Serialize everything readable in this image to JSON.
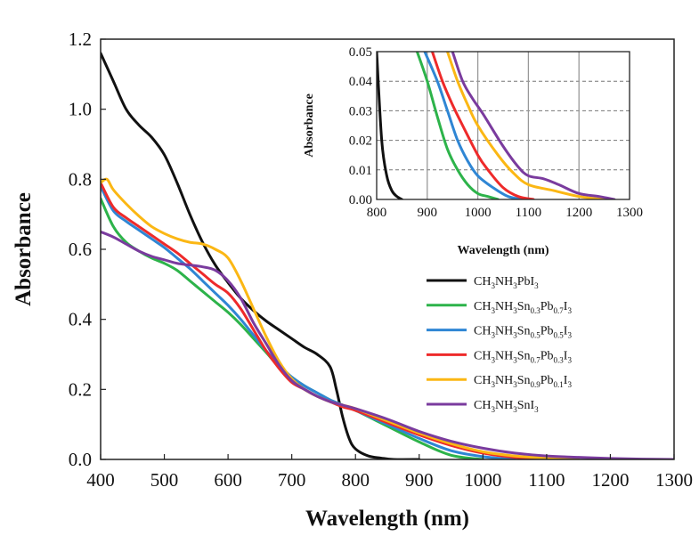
{
  "chart_data": [
    {
      "type": "line",
      "title": "",
      "xlabel": "Wavelength (nm)",
      "ylabel": "Absorbance",
      "xlim": [
        400,
        1300
      ],
      "ylim": [
        0.0,
        1.2
      ],
      "x_ticks": [
        "400",
        "500",
        "600",
        "700",
        "800",
        "900",
        "1000",
        "1100",
        "1200",
        "1300"
      ],
      "y_ticks": [
        "0.0",
        "0.2",
        "0.4",
        "0.6",
        "0.8",
        "1.0",
        "1.2"
      ],
      "grid": false,
      "legend_position": "center-right",
      "series": [
        {
          "name": "CH3NH3PbI3",
          "label": {
            "parts": [
              [
                "CH",
                "n"
              ],
              [
                "3",
                "s"
              ],
              [
                "NH",
                "n"
              ],
              [
                "3",
                "s"
              ],
              [
                "PbI",
                "n"
              ],
              [
                "3",
                "s"
              ]
            ]
          },
          "color": "#111111",
          "x": [
            400,
            420,
            440,
            460,
            480,
            500,
            520,
            540,
            560,
            580,
            600,
            620,
            640,
            660,
            680,
            700,
            720,
            740,
            760,
            770,
            780,
            790,
            800,
            820,
            840,
            860,
            900
          ],
          "y": [
            1.16,
            1.08,
            1.0,
            0.955,
            0.92,
            0.87,
            0.79,
            0.7,
            0.62,
            0.555,
            0.505,
            0.46,
            0.425,
            0.395,
            0.37,
            0.345,
            0.32,
            0.3,
            0.265,
            0.2,
            0.12,
            0.06,
            0.03,
            0.01,
            0.004,
            0.0,
            0.0
          ]
        },
        {
          "name": "CH3NH3Sn0.3Pb0.7I3",
          "label": {
            "parts": [
              [
                "CH",
                "n"
              ],
              [
                "3",
                "s"
              ],
              [
                "NH",
                "n"
              ],
              [
                "3",
                "s"
              ],
              [
                "Sn",
                "n"
              ],
              [
                "0.3",
                "s"
              ],
              [
                "Pb",
                "n"
              ],
              [
                "0.7",
                "s"
              ],
              [
                "I",
                "n"
              ],
              [
                "3",
                "s"
              ]
            ]
          },
          "color": "#2db34a",
          "x": [
            400,
            420,
            440,
            460,
            480,
            500,
            520,
            540,
            560,
            580,
            600,
            620,
            640,
            660,
            680,
            700,
            720,
            740,
            760,
            780,
            800,
            850,
            900,
            950,
            1000
          ],
          "y": [
            0.745,
            0.665,
            0.62,
            0.595,
            0.575,
            0.56,
            0.54,
            0.51,
            0.48,
            0.45,
            0.42,
            0.385,
            0.345,
            0.305,
            0.265,
            0.235,
            0.21,
            0.19,
            0.17,
            0.155,
            0.14,
            0.095,
            0.05,
            0.012,
            0.0
          ]
        },
        {
          "name": "CH3NH3Sn0.5Pb0.5I3",
          "label": {
            "parts": [
              [
                "CH",
                "n"
              ],
              [
                "3",
                "s"
              ],
              [
                "NH",
                "n"
              ],
              [
                "3",
                "s"
              ],
              [
                "Sn",
                "n"
              ],
              [
                "0.5",
                "s"
              ],
              [
                "Pb",
                "n"
              ],
              [
                "0.5",
                "s"
              ],
              [
                "I",
                "n"
              ],
              [
                "3",
                "s"
              ]
            ]
          },
          "color": "#2f86d4",
          "x": [
            400,
            420,
            440,
            460,
            480,
            500,
            520,
            540,
            560,
            580,
            600,
            620,
            640,
            660,
            680,
            700,
            720,
            740,
            760,
            780,
            800,
            850,
            900,
            950,
            1000,
            1050
          ],
          "y": [
            0.78,
            0.71,
            0.68,
            0.655,
            0.63,
            0.605,
            0.575,
            0.545,
            0.51,
            0.475,
            0.44,
            0.4,
            0.355,
            0.31,
            0.27,
            0.235,
            0.21,
            0.19,
            0.17,
            0.155,
            0.14,
            0.1,
            0.06,
            0.025,
            0.008,
            0.0
          ]
        },
        {
          "name": "CH3NH3Sn0.7Pb0.3I3",
          "label": {
            "parts": [
              [
                "CH",
                "n"
              ],
              [
                "3",
                "s"
              ],
              [
                "NH",
                "n"
              ],
              [
                "3",
                "s"
              ],
              [
                "Sn",
                "n"
              ],
              [
                "0.7",
                "s"
              ],
              [
                "Pb",
                "n"
              ],
              [
                "0.3",
                "s"
              ],
              [
                "I",
                "n"
              ],
              [
                "3",
                "s"
              ]
            ]
          },
          "color": "#ee2a2a",
          "x": [
            400,
            420,
            440,
            460,
            480,
            500,
            520,
            540,
            560,
            580,
            600,
            620,
            640,
            660,
            680,
            700,
            720,
            740,
            760,
            780,
            800,
            850,
            900,
            950,
            1000,
            1050,
            1100
          ],
          "y": [
            0.79,
            0.72,
            0.69,
            0.665,
            0.64,
            0.615,
            0.59,
            0.56,
            0.53,
            0.5,
            0.475,
            0.43,
            0.37,
            0.31,
            0.26,
            0.22,
            0.2,
            0.18,
            0.165,
            0.15,
            0.14,
            0.105,
            0.07,
            0.04,
            0.018,
            0.006,
            0.0
          ]
        },
        {
          "name": "CH3NH3Sn0.9Pb0.1I3",
          "label": {
            "parts": [
              [
                "CH",
                "n"
              ],
              [
                "3",
                "s"
              ],
              [
                "NH",
                "n"
              ],
              [
                "3",
                "s"
              ],
              [
                "Sn",
                "n"
              ],
              [
                "0.9",
                "s"
              ],
              [
                "Pb",
                "n"
              ],
              [
                "0.1",
                "s"
              ],
              [
                "I",
                "n"
              ],
              [
                "3",
                "s"
              ]
            ]
          },
          "color": "#fbb714",
          "x": [
            400,
            410,
            420,
            440,
            460,
            480,
            500,
            520,
            540,
            560,
            580,
            600,
            620,
            640,
            660,
            680,
            700,
            720,
            740,
            760,
            780,
            800,
            850,
            900,
            950,
            1000,
            1050,
            1100,
            1150
          ],
          "y": [
            0.79,
            0.8,
            0.77,
            0.73,
            0.695,
            0.665,
            0.645,
            0.63,
            0.62,
            0.615,
            0.6,
            0.575,
            0.51,
            0.43,
            0.35,
            0.28,
            0.23,
            0.2,
            0.18,
            0.165,
            0.155,
            0.145,
            0.11,
            0.075,
            0.045,
            0.022,
            0.01,
            0.004,
            0.0
          ]
        },
        {
          "name": "CH3NH3SnI3",
          "label": {
            "parts": [
              [
                "CH",
                "n"
              ],
              [
                "3",
                "s"
              ],
              [
                "NH",
                "n"
              ],
              [
                "3",
                "s"
              ],
              [
                "SnI",
                "n"
              ],
              [
                "3",
                "s"
              ]
            ]
          },
          "color": "#7a3b9e",
          "x": [
            400,
            420,
            440,
            460,
            480,
            500,
            520,
            540,
            560,
            580,
            600,
            620,
            640,
            660,
            680,
            700,
            720,
            740,
            760,
            780,
            800,
            850,
            900,
            950,
            1000,
            1050,
            1100,
            1150,
            1200,
            1250,
            1300
          ],
          "y": [
            0.65,
            0.635,
            0.615,
            0.595,
            0.58,
            0.57,
            0.56,
            0.555,
            0.55,
            0.54,
            0.51,
            0.46,
            0.39,
            0.33,
            0.27,
            0.225,
            0.2,
            0.18,
            0.165,
            0.155,
            0.145,
            0.115,
            0.08,
            0.052,
            0.032,
            0.018,
            0.01,
            0.006,
            0.003,
            0.001,
            0.0
          ]
        }
      ]
    },
    {
      "type": "line",
      "title": "",
      "xlabel": "Wavelength (nm)",
      "ylabel": "Absorbance",
      "xlim": [
        800,
        1300
      ],
      "ylim": [
        0.0,
        0.05
      ],
      "x_ticks": [
        "800",
        "900",
        "1000",
        "1100",
        "1200",
        "1300"
      ],
      "y_ticks": [
        "0.00",
        "0.01",
        "0.02",
        "0.03",
        "0.04",
        "0.05"
      ],
      "grid": true,
      "series": [
        {
          "name": "CH3NH3PbI3",
          "color": "#111111",
          "x": [
            800,
            810,
            820,
            830,
            840,
            850
          ],
          "y": [
            0.05,
            0.02,
            0.008,
            0.003,
            0.001,
            0.0
          ]
        },
        {
          "name": "CH3NH3Sn0.3Pb0.7I3",
          "color": "#2db34a",
          "x": [
            880,
            900,
            920,
            940,
            960,
            980,
            1000,
            1020,
            1040
          ],
          "y": [
            0.05,
            0.04,
            0.028,
            0.017,
            0.01,
            0.005,
            0.002,
            0.001,
            0.0
          ]
        },
        {
          "name": "CH3NH3Sn0.5Pb0.5I3",
          "color": "#2f86d4",
          "x": [
            895,
            920,
            940,
            960,
            980,
            1000,
            1030,
            1060,
            1090
          ],
          "y": [
            0.05,
            0.04,
            0.03,
            0.02,
            0.013,
            0.008,
            0.004,
            0.001,
            0.0
          ]
        },
        {
          "name": "CH3NH3Sn0.7Pb0.3I3",
          "color": "#ee2a2a",
          "x": [
            910,
            930,
            950,
            970,
            1000,
            1020,
            1050,
            1080,
            1110
          ],
          "y": [
            0.05,
            0.04,
            0.032,
            0.025,
            0.015,
            0.01,
            0.004,
            0.001,
            0.0
          ]
        },
        {
          "name": "CH3NH3Sn0.9Pb0.1I3",
          "color": "#fbb714",
          "x": [
            940,
            960,
            980,
            1000,
            1040,
            1070,
            1100,
            1150,
            1200,
            1250
          ],
          "y": [
            0.05,
            0.04,
            0.032,
            0.025,
            0.015,
            0.009,
            0.005,
            0.003,
            0.001,
            0.0
          ]
        },
        {
          "name": "CH3NH3SnI3",
          "color": "#7a3b9e",
          "x": [
            950,
            970,
            990,
            1010,
            1050,
            1080,
            1100,
            1130,
            1160,
            1200,
            1240,
            1270
          ],
          "y": [
            0.05,
            0.04,
            0.034,
            0.029,
            0.018,
            0.011,
            0.008,
            0.007,
            0.005,
            0.002,
            0.001,
            0.0
          ]
        }
      ]
    }
  ]
}
